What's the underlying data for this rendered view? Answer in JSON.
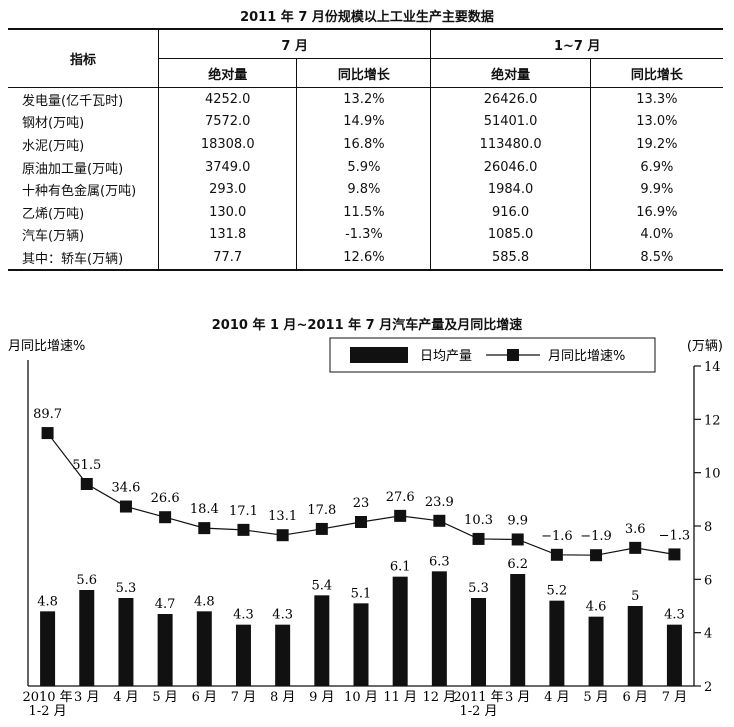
{
  "table": {
    "title": "2011 年 7 月份规模以上工业生产主要数据",
    "header_indicator": "指标",
    "group_month": "7 月",
    "group_ytd": "1~7 月",
    "col_abs": "绝对量",
    "col_yoy": "同比增长",
    "rows": [
      {
        "name": "发电量(亿千瓦时)",
        "m_abs": "4252.0",
        "m_yoy": "13.2%",
        "y_abs": "26426.0",
        "y_yoy": "13.3%"
      },
      {
        "name": "钢材(万吨)",
        "m_abs": "7572.0",
        "m_yoy": "14.9%",
        "y_abs": "51401.0",
        "y_yoy": "13.0%"
      },
      {
        "name": "水泥(万吨)",
        "m_abs": "18308.0",
        "m_yoy": "16.8%",
        "y_abs": "113480.0",
        "y_yoy": "19.2%"
      },
      {
        "name": "原油加工量(万吨)",
        "m_abs": "3749.0",
        "m_yoy": "5.9%",
        "y_abs": "26046.0",
        "y_yoy": "6.9%"
      },
      {
        "name": "十种有色金属(万吨)",
        "m_abs": "293.0",
        "m_yoy": "9.8%",
        "y_abs": "1984.0",
        "y_yoy": "9.9%"
      },
      {
        "name": "乙烯(万吨)",
        "m_abs": "130.0",
        "m_yoy": "11.5%",
        "y_abs": "916.0",
        "y_yoy": "16.9%"
      },
      {
        "name": "汽车(万辆)",
        "m_abs": "131.8",
        "m_yoy": "-1.3%",
        "y_abs": "1085.0",
        "y_yoy": "4.0%"
      },
      {
        "name": "其中：轿车(万辆)",
        "m_abs": "77.7",
        "m_yoy": "12.6%",
        "y_abs": "585.8",
        "y_yoy": "8.5%"
      }
    ]
  },
  "chart_data": {
    "type": "bar+line",
    "title": "2010 年 1 月~2011 年 7 月汽车产量及月同比增速",
    "ylabel_left": "月同比增速%",
    "ylabel_right": "(万辆)",
    "categories": [
      [
        "2010 年",
        "1-2 月"
      ],
      [
        "3 月"
      ],
      [
        "4 月"
      ],
      [
        "5 月"
      ],
      [
        "6 月"
      ],
      [
        "7 月"
      ],
      [
        "8 月"
      ],
      [
        "9 月"
      ],
      [
        "10 月"
      ],
      [
        "11 月"
      ],
      [
        "12 月"
      ],
      [
        "2011 年",
        "1-2 月"
      ],
      [
        "3 月"
      ],
      [
        "4 月"
      ],
      [
        "5 月"
      ],
      [
        "6 月"
      ],
      [
        "7 月"
      ]
    ],
    "series": [
      {
        "name": "日均产量",
        "kind": "bar",
        "axis": "right",
        "values": [
          4.8,
          5.6,
          5.3,
          4.7,
          4.8,
          4.3,
          4.3,
          5.4,
          5.1,
          6.1,
          6.3,
          5.3,
          6.2,
          5.2,
          4.6,
          5,
          4.3
        ],
        "labels": [
          "4.8",
          "5.6",
          "5.3",
          "4.7",
          "4.8",
          "4.3",
          "4.3",
          "5.4",
          "5.1",
          "6.1",
          "6.3",
          "5.3",
          "6.2",
          "5.2",
          "4.6",
          "5",
          "4.3"
        ]
      },
      {
        "name": "月同比增速%",
        "kind": "line",
        "axis": "left",
        "values": [
          89.7,
          51.5,
          34.6,
          26.6,
          18.4,
          17.1,
          13.1,
          17.8,
          23,
          27.6,
          23.9,
          10.3,
          9.9,
          -1.6,
          -1.9,
          3.6,
          -1.3
        ],
        "labels": [
          "89.7",
          "51.5",
          "34.6",
          "26.6",
          "18.4",
          "17.1",
          "13.1",
          "17.8",
          "23",
          "27.6",
          "23.9",
          "10.3",
          "9.9",
          "−1.6",
          "−1.9",
          "3.6",
          "−1.3"
        ]
      }
    ],
    "right_axis": {
      "ylim": [
        2,
        14
      ],
      "ticks": [
        "2",
        "4",
        "6",
        "8",
        "10",
        "12",
        "14"
      ]
    },
    "legend": {
      "bar_label": "日均产量",
      "line_label": "月同比增速%",
      "placement": "top-right"
    },
    "colors": {
      "bar": "#111111",
      "line": "#111111",
      "marker": "#111111"
    }
  }
}
